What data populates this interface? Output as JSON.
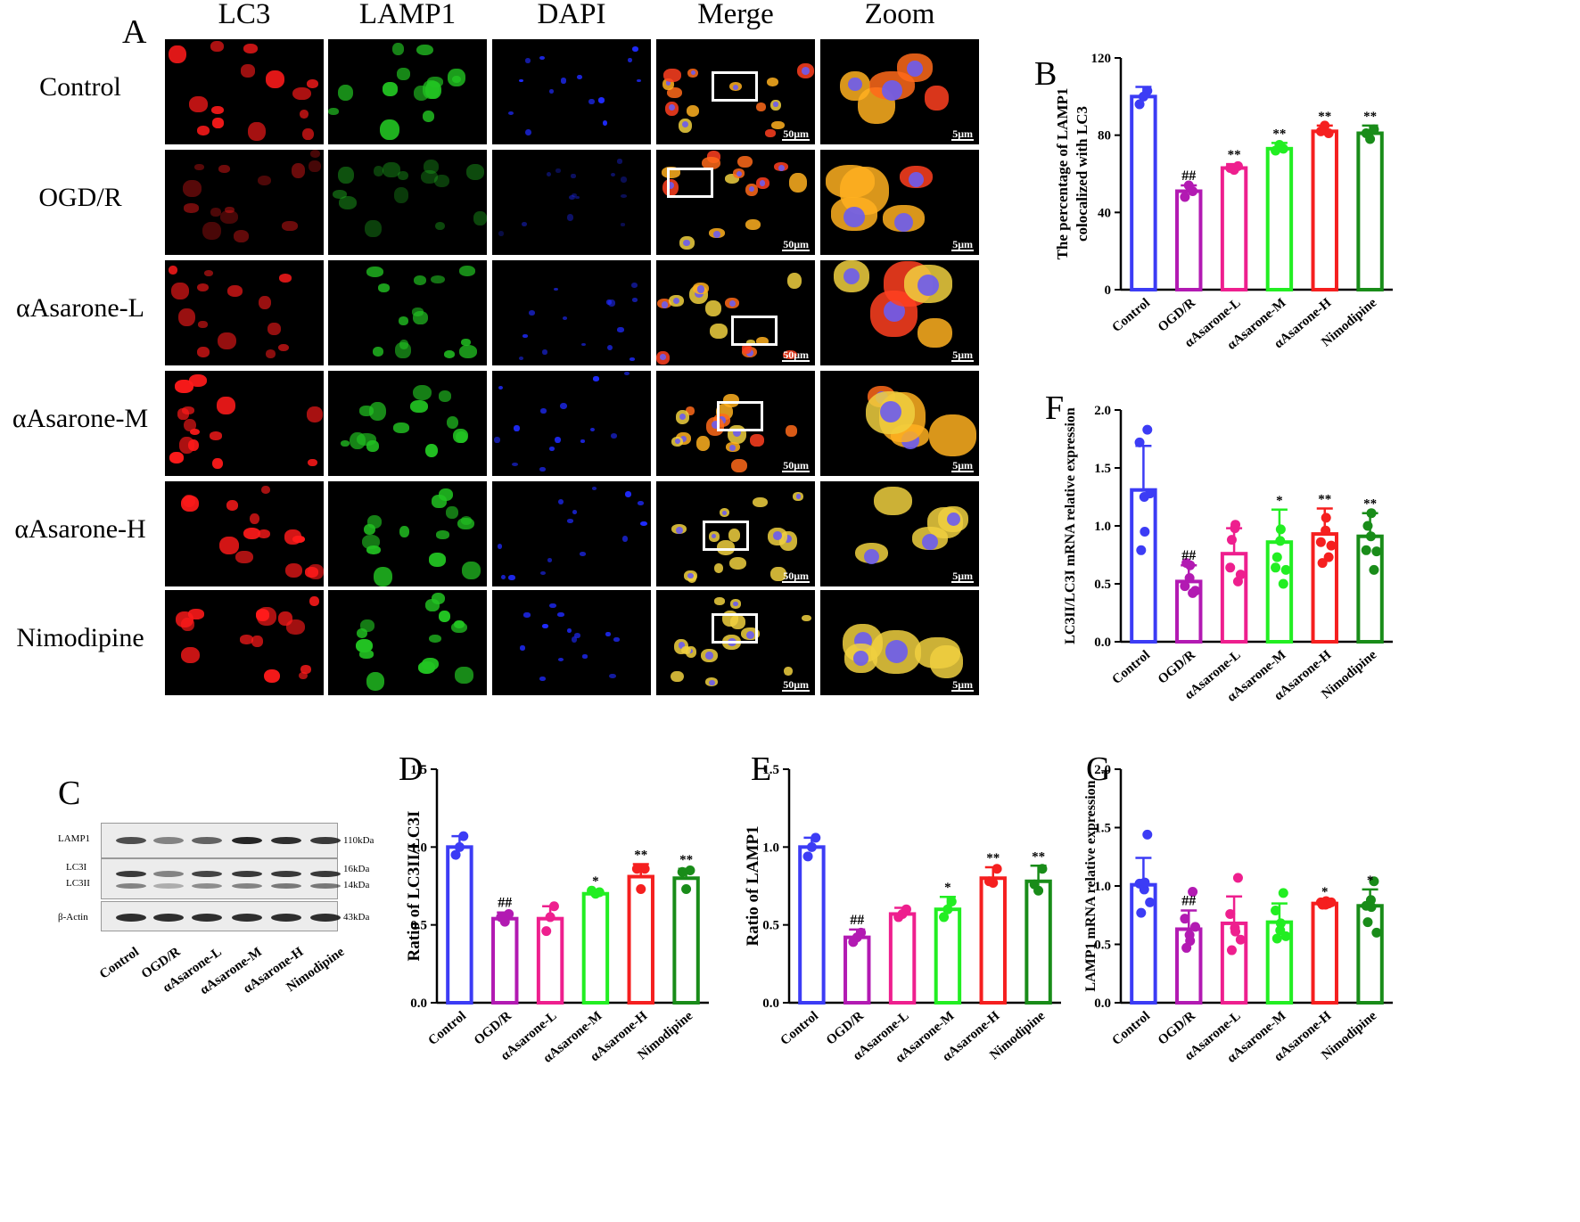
{
  "panel_a": {
    "letter": "A",
    "columns": [
      "LC3",
      "LAMP1",
      "DAPI",
      "Merge",
      "Zoom"
    ],
    "rows": [
      "Control",
      "OGD/R",
      "αAsarone-L",
      "αAsarone-M",
      "αAsarone-H",
      "Nimodipine"
    ],
    "scale_merge": "50μm",
    "scale_zoom": "5μm",
    "colors": {
      "LC3": "#ff1a1a",
      "LAMP1": "#22c322",
      "DAPI": "#1f2bff"
    }
  },
  "panel_c": {
    "letter": "C",
    "bands": [
      {
        "name": "LAMP1",
        "size": "110kDa"
      },
      {
        "name": "LC3I",
        "size": "16kDa"
      },
      {
        "name": "LC3II",
        "size": "14kDa"
      },
      {
        "name": "β-Actin",
        "size": "43kDa"
      }
    ],
    "lanes": [
      "Control",
      "OGD/R",
      "αAsarone-L",
      "αAsarone-M",
      "αAsarone-H",
      "Nimodipine"
    ]
  },
  "chart_data": [
    {
      "id": "B",
      "type": "bar",
      "ylabel": "The percentage of LAMP1\ncolocalized with LC3",
      "ylim": [
        0,
        120
      ],
      "yticks": [
        0,
        40,
        80,
        120
      ],
      "categories": [
        "Control",
        "OGD/R",
        "αAsarone-L",
        "αAsarone-M",
        "αAsarone-H",
        "Nimodipine"
      ],
      "values": [
        100,
        51,
        63,
        73,
        82,
        81
      ],
      "errors": [
        5,
        3,
        2,
        3,
        3,
        4
      ],
      "points": [
        [
          103,
          100,
          96
        ],
        [
          51,
          54,
          48
        ],
        [
          64,
          62,
          63
        ],
        [
          73,
          75,
          72
        ],
        [
          81,
          85,
          82
        ],
        [
          83,
          78,
          81
        ]
      ],
      "marks": [
        "",
        "##",
        "**",
        "**",
        "**",
        "**"
      ],
      "colors": [
        "#3c3cf5",
        "#b21ab2",
        "#ee1f8e",
        "#22ee22",
        "#f51f1f",
        "#198c19"
      ]
    },
    {
      "id": "F",
      "type": "bar",
      "ylabel": "LC3II/LC3I mRNA relative expression",
      "ylim": [
        0,
        2.0
      ],
      "yticks": [
        "0.0",
        "0.5",
        "1.0",
        "1.5",
        "2.0"
      ],
      "categories": [
        "Control",
        "OGD/R",
        "αAsarone-L",
        "αAsarone-M",
        "αAsarone-H",
        "Nimodipine"
      ],
      "values": [
        1.31,
        0.52,
        0.76,
        0.86,
        0.93,
        0.91
      ],
      "errors": [
        0.38,
        0.14,
        0.22,
        0.28,
        0.22,
        0.2
      ],
      "points": [
        [
          1.83,
          1.72,
          1.25,
          0.95,
          0.79,
          1.28
        ],
        [
          0.42,
          0.48,
          0.55,
          0.66,
          0.68,
          0.44
        ],
        [
          0.52,
          0.64,
          0.98,
          1.01,
          0.88,
          0.58
        ],
        [
          0.5,
          0.64,
          0.87,
          0.97,
          0.73,
          0.62
        ],
        [
          0.73,
          0.86,
          0.96,
          1.07,
          0.68,
          0.83
        ],
        [
          0.62,
          0.79,
          0.91,
          1.11,
          1.0,
          0.78
        ]
      ],
      "marks": [
        "",
        "##",
        "",
        "*",
        "**",
        "**"
      ],
      "colors": [
        "#3c3cf5",
        "#b21ab2",
        "#ee1f8e",
        "#22ee22",
        "#f51f1f",
        "#198c19"
      ]
    },
    {
      "id": "D",
      "type": "bar",
      "ylabel": "Ratio of LC3II/LC3I",
      "ylim": [
        0,
        1.5
      ],
      "yticks": [
        "0.0",
        "0.5",
        "1.0",
        "1.5"
      ],
      "categories": [
        "Control",
        "OGD/R",
        "αAsarone-L",
        "αAsarone-M",
        "αAsarone-H",
        "Nimodipine"
      ],
      "values": [
        1.0,
        0.54,
        0.54,
        0.7,
        0.81,
        0.8
      ],
      "errors": [
        0.07,
        0.04,
        0.08,
        0.02,
        0.08,
        0.06
      ],
      "points": [
        [
          1.07,
          1.0,
          0.95
        ],
        [
          0.57,
          0.52,
          0.55
        ],
        [
          0.62,
          0.55,
          0.46
        ],
        [
          0.71,
          0.7,
          0.72
        ],
        [
          0.86,
          0.73,
          0.86
        ],
        [
          0.85,
          0.73,
          0.84
        ]
      ],
      "marks": [
        "",
        "##",
        "",
        "*",
        "**",
        "**"
      ],
      "colors": [
        "#3c3cf5",
        "#b21ab2",
        "#ee1f8e",
        "#22ee22",
        "#f51f1f",
        "#198c19"
      ]
    },
    {
      "id": "E",
      "type": "bar",
      "ylabel": "Ratio of LAMP1",
      "ylim": [
        0,
        1.5
      ],
      "yticks": [
        "0.0",
        "0.5",
        "1.0",
        "1.5"
      ],
      "categories": [
        "Control",
        "OGD/R",
        "αAsarone-L",
        "αAsarone-M",
        "αAsarone-H",
        "Nimodipine"
      ],
      "values": [
        1.0,
        0.42,
        0.57,
        0.6,
        0.8,
        0.78
      ],
      "errors": [
        0.06,
        0.05,
        0.04,
        0.08,
        0.07,
        0.1
      ],
      "points": [
        [
          1.06,
          1.0,
          0.94
        ],
        [
          0.45,
          0.42,
          0.39
        ],
        [
          0.6,
          0.57,
          0.55
        ],
        [
          0.65,
          0.6,
          0.55
        ],
        [
          0.86,
          0.77,
          0.78
        ],
        [
          0.86,
          0.72,
          0.76
        ]
      ],
      "marks": [
        "",
        "##",
        "",
        "*",
        "**",
        "**"
      ],
      "colors": [
        "#3c3cf5",
        "#b21ab2",
        "#ee1f8e",
        "#22ee22",
        "#f51f1f",
        "#198c19"
      ]
    },
    {
      "id": "G",
      "type": "bar",
      "ylabel": "LAMP1 mRNA relative expression",
      "ylim": [
        0,
        2.0
      ],
      "yticks": [
        "0.0",
        "0.5",
        "1.0",
        "1.5",
        "2.0"
      ],
      "categories": [
        "Control",
        "OGD/R",
        "αAsarone-L",
        "αAsarone-M",
        "αAsarone-H",
        "Nimodipine"
      ],
      "values": [
        1.01,
        0.63,
        0.68,
        0.69,
        0.85,
        0.83
      ],
      "errors": [
        0.23,
        0.16,
        0.23,
        0.16,
        0.02,
        0.14
      ],
      "points": [
        [
          1.44,
          1.02,
          0.97,
          1.03,
          0.77,
          0.86
        ],
        [
          0.95,
          0.72,
          0.58,
          0.53,
          0.47,
          0.65
        ],
        [
          1.07,
          0.76,
          0.64,
          0.61,
          0.45,
          0.54
        ],
        [
          0.94,
          0.79,
          0.62,
          0.68,
          0.55,
          0.57
        ],
        [
          0.85,
          0.86,
          0.84,
          0.87,
          0.84,
          0.86
        ],
        [
          1.04,
          0.83,
          0.88,
          0.82,
          0.69,
          0.6
        ]
      ],
      "marks": [
        "",
        "##",
        "",
        "",
        "*",
        "*"
      ],
      "colors": [
        "#3c3cf5",
        "#b21ab2",
        "#ee1f8e",
        "#22ee22",
        "#f51f1f",
        "#198c19"
      ]
    }
  ]
}
